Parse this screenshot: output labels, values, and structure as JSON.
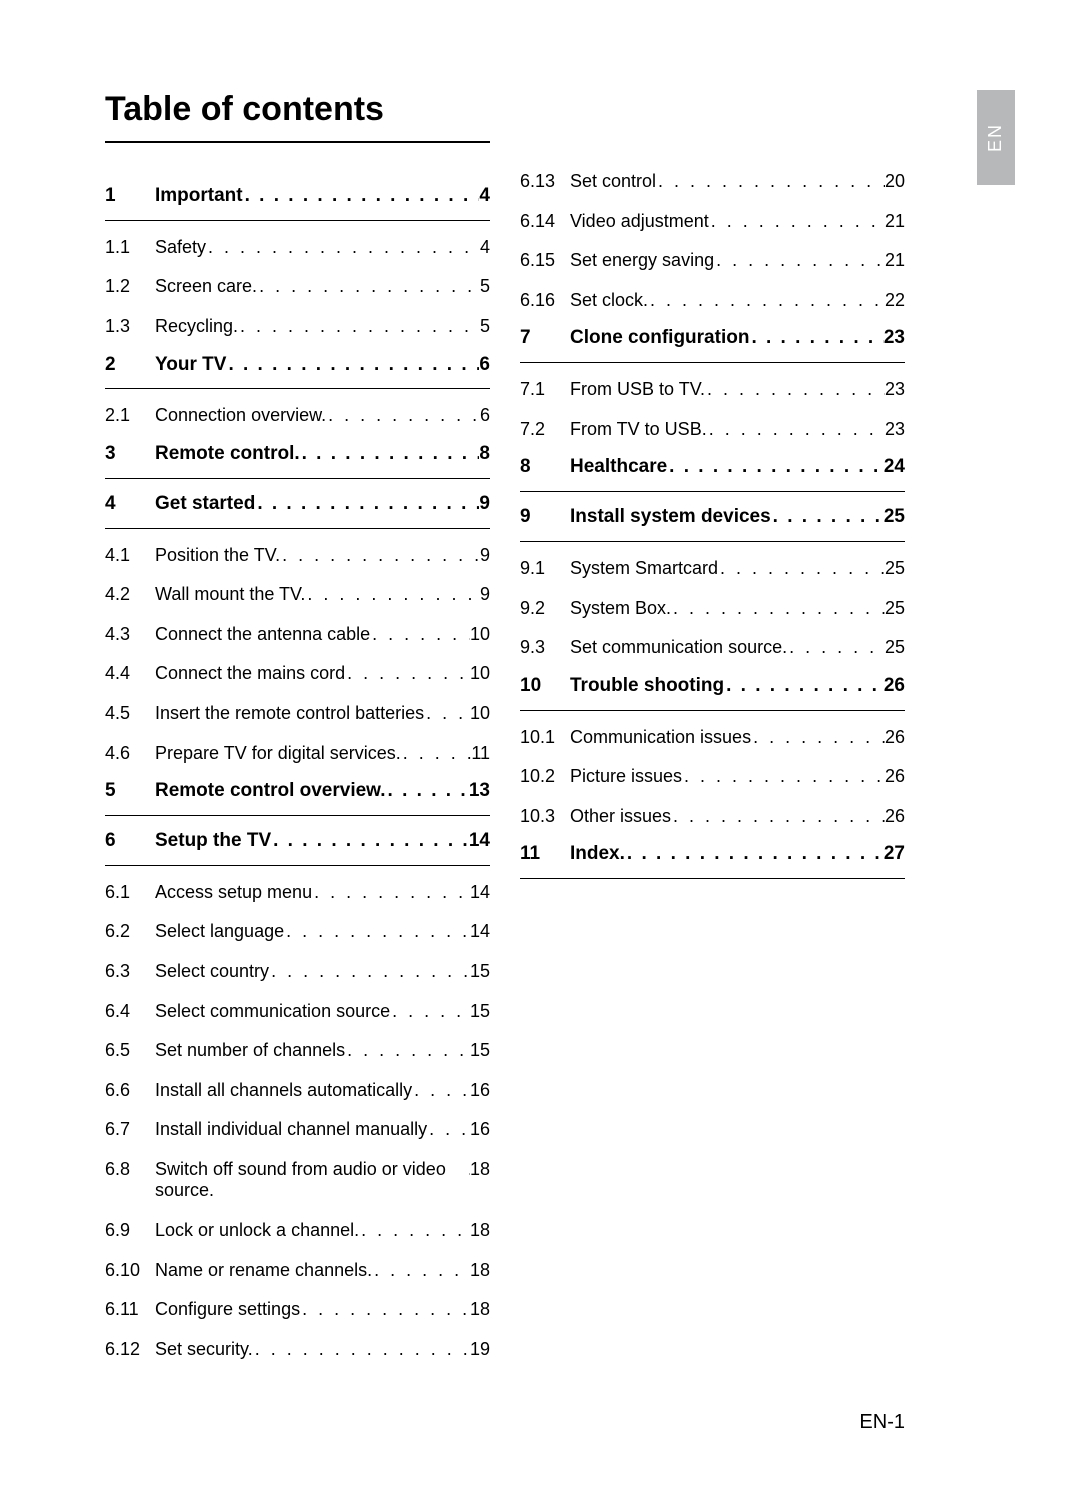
{
  "title": "Table of contents",
  "side_tab": "EN",
  "page_number": "EN-1",
  "left": [
    {
      "type": "head",
      "num": "1",
      "label": "Important",
      "page": "4"
    },
    {
      "type": "sub",
      "num": "1.1",
      "label": "Safety",
      "page": "4"
    },
    {
      "type": "sub",
      "num": "1.2",
      "label": "Screen care.",
      "page": "5"
    },
    {
      "type": "sub",
      "num": "1.3",
      "label": "Recycling.",
      "page": "5"
    },
    {
      "type": "head",
      "num": "2",
      "label": "Your TV",
      "page": "6"
    },
    {
      "type": "sub",
      "num": "2.1",
      "label": "Connection overview.",
      "page": "6"
    },
    {
      "type": "head",
      "num": "3",
      "label": "Remote control.",
      "page": "8"
    },
    {
      "type": "head",
      "num": "4",
      "label": "Get started",
      "page": "9"
    },
    {
      "type": "sub",
      "num": "4.1",
      "label": "Position the TV.",
      "page": "9"
    },
    {
      "type": "sub",
      "num": "4.2",
      "label": "Wall mount the TV.",
      "page": "9"
    },
    {
      "type": "sub",
      "num": "4.3",
      "label": "Connect the antenna cable",
      "page": "10"
    },
    {
      "type": "sub",
      "num": "4.4",
      "label": "Connect the mains cord",
      "page": "10"
    },
    {
      "type": "sub",
      "num": "4.5",
      "label": "Insert the remote control batteries",
      "page": "10"
    },
    {
      "type": "sub",
      "num": "4.6",
      "label": "Prepare TV for digital services.",
      "page": "11"
    },
    {
      "type": "head",
      "num": "5",
      "label": "Remote control overview.",
      "page": "13"
    },
    {
      "type": "head",
      "num": "6",
      "label": "Setup the TV",
      "page": "14"
    },
    {
      "type": "sub",
      "num": "6.1",
      "label": "Access setup menu",
      "page": "14"
    },
    {
      "type": "sub",
      "num": "6.2",
      "label": "Select language",
      "page": "14"
    },
    {
      "type": "sub",
      "num": "6.3",
      "label": "Select country",
      "page": "15"
    },
    {
      "type": "sub",
      "num": "6.4",
      "label": "Select communication source",
      "page": "15"
    },
    {
      "type": "sub",
      "num": "6.5",
      "label": "Set number of channels",
      "page": "15"
    },
    {
      "type": "sub",
      "num": "6.6",
      "label": "Install all channels automatically",
      "page": "16"
    },
    {
      "type": "sub",
      "num": "6.7",
      "label": "Install individual channel manually",
      "page": "16"
    },
    {
      "type": "sub",
      "num": "6.8",
      "label": "Switch off sound from audio or video source.",
      "page": "18"
    },
    {
      "type": "sub",
      "num": "6.9",
      "label": "Lock or unlock a channel.",
      "page": "18"
    },
    {
      "type": "sub",
      "num": "6.10",
      "label": "Name or rename channels.",
      "page": "18"
    },
    {
      "type": "sub",
      "num": "6.11",
      "label": "Configure settings",
      "page": "18"
    },
    {
      "type": "sub",
      "num": "6.12",
      "label": "Set security.",
      "page": "19"
    }
  ],
  "right": [
    {
      "type": "sub",
      "num": "6.13",
      "label": "Set control",
      "page": "20"
    },
    {
      "type": "sub",
      "num": "6.14",
      "label": "Video adjustment",
      "page": "21"
    },
    {
      "type": "sub",
      "num": "6.15",
      "label": "Set energy saving",
      "page": "21"
    },
    {
      "type": "sub",
      "num": "6.16",
      "label": "Set clock.",
      "page": "22"
    },
    {
      "type": "head",
      "num": "7",
      "label": "Clone configuration",
      "page": "23"
    },
    {
      "type": "sub",
      "num": "7.1",
      "label": "From USB to TV.",
      "page": "23"
    },
    {
      "type": "sub",
      "num": "7.2",
      "label": "From TV to USB.",
      "page": "23"
    },
    {
      "type": "head",
      "num": "8",
      "label": "Healthcare",
      "page": "24"
    },
    {
      "type": "head",
      "num": "9",
      "label": "Install system devices",
      "page": "25"
    },
    {
      "type": "sub",
      "num": "9.1",
      "label": "System Smartcard",
      "page": "25"
    },
    {
      "type": "sub",
      "num": "9.2",
      "label": "System Box.",
      "page": "25"
    },
    {
      "type": "sub",
      "num": "9.3",
      "label": "Set communication source.",
      "page": "25"
    },
    {
      "type": "head",
      "num": "10",
      "label": "Trouble shooting",
      "page": "26"
    },
    {
      "type": "sub",
      "num": "10.1",
      "label": "Communication issues",
      "page": "26"
    },
    {
      "type": "sub",
      "num": "10.2",
      "label": "Picture issues",
      "page": "26"
    },
    {
      "type": "sub",
      "num": "10.3",
      "label": "Other issues",
      "page": "26"
    },
    {
      "type": "head",
      "num": "11",
      "label": "Index.",
      "page": "27"
    }
  ]
}
